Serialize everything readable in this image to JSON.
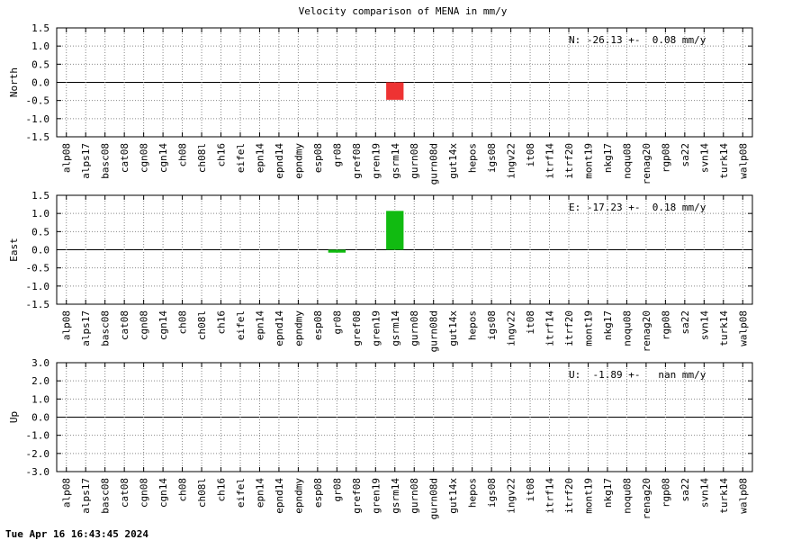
{
  "figure": {
    "title": "Velocity comparison of MENA in mm/y",
    "footer": "Tue Apr 16 16:43:45 2024"
  },
  "chart_data": [
    {
      "type": "bar",
      "ylabel": "North",
      "annotation": "N: -26.13 +-  0.08 mm/y",
      "ylim": [
        -1.5,
        1.5
      ],
      "yticks": [
        "1.5",
        "1.0",
        "0.5",
        "0.0",
        "-0.5",
        "-1.0",
        "-1.5"
      ],
      "color": "#ee3333",
      "grid": true,
      "categories": [
        "alp08",
        "alps17",
        "basc08",
        "cat08",
        "cgn08",
        "cgn14",
        "ch08",
        "ch08l",
        "ch16",
        "eifel",
        "epn14",
        "epnd14",
        "epndmy",
        "esp08",
        "gr08",
        "gref08",
        "gren19",
        "gsrm14",
        "gurn08",
        "gurn08d",
        "gut14x",
        "hepos",
        "igs08",
        "ingv22",
        "it08",
        "itrf14",
        "itrf20",
        "mont19",
        "nkg17",
        "noqu08",
        "renag20",
        "rgp08",
        "sa22",
        "svn14",
        "turk14",
        "walp08"
      ],
      "values": [
        0,
        0,
        0,
        0,
        0,
        0,
        0,
        0,
        0,
        0,
        0,
        0,
        0,
        0,
        0,
        0,
        0,
        -0.48,
        0,
        0,
        0,
        0,
        0,
        0,
        0,
        0,
        0,
        0,
        0,
        0,
        0,
        0,
        0,
        0,
        0,
        0
      ]
    },
    {
      "type": "bar",
      "ylabel": "East",
      "annotation": "E: -17.23 +-  0.18 mm/y",
      "ylim": [
        -1.5,
        1.5
      ],
      "yticks": [
        "1.5",
        "1.0",
        "0.5",
        "0.0",
        "-0.5",
        "-1.0",
        "-1.5"
      ],
      "color": "#11bb11",
      "grid": true,
      "categories": [
        "alp08",
        "alps17",
        "basc08",
        "cat08",
        "cgn08",
        "cgn14",
        "ch08",
        "ch08l",
        "ch16",
        "eifel",
        "epn14",
        "epnd14",
        "epndmy",
        "esp08",
        "gr08",
        "gref08",
        "gren19",
        "gsrm14",
        "gurn08",
        "gurn08d",
        "gut14x",
        "hepos",
        "igs08",
        "ingv22",
        "it08",
        "itrf14",
        "itrf20",
        "mont19",
        "nkg17",
        "noqu08",
        "renag20",
        "rgp08",
        "sa22",
        "svn14",
        "turk14",
        "walp08"
      ],
      "values": [
        0,
        0,
        0,
        0,
        0,
        0,
        0,
        0,
        0,
        0,
        0,
        0,
        0,
        0,
        -0.08,
        0,
        0,
        1.07,
        0,
        0,
        0,
        0,
        0,
        0,
        0,
        0,
        0,
        0,
        0,
        0,
        0,
        0,
        0,
        0,
        0,
        0
      ]
    },
    {
      "type": "bar",
      "ylabel": "Up",
      "annotation": "U:  -1.89 +-   nan mm/y",
      "ylim": [
        -3.0,
        3.0
      ],
      "yticks": [
        "3.0",
        "2.0",
        "1.0",
        "0.0",
        "-1.0",
        "-2.0",
        "-3.0"
      ],
      "color": "#3333ee",
      "grid": true,
      "categories": [
        "alp08",
        "alps17",
        "basc08",
        "cat08",
        "cgn08",
        "cgn14",
        "ch08",
        "ch08l",
        "ch16",
        "eifel",
        "epn14",
        "epnd14",
        "epndmy",
        "esp08",
        "gr08",
        "gref08",
        "gren19",
        "gsrm14",
        "gurn08",
        "gurn08d",
        "gut14x",
        "hepos",
        "igs08",
        "ingv22",
        "it08",
        "itrf14",
        "itrf20",
        "mont19",
        "nkg17",
        "noqu08",
        "renag20",
        "rgp08",
        "sa22",
        "svn14",
        "turk14",
        "walp08"
      ],
      "values": [
        0,
        0,
        0,
        0,
        0,
        0,
        0,
        0,
        0,
        0,
        0,
        0,
        0,
        0,
        0,
        0,
        0,
        0,
        0,
        0,
        0,
        0,
        0,
        0,
        0,
        0,
        0,
        0,
        0,
        0,
        0,
        0,
        0,
        0,
        0,
        0
      ]
    }
  ]
}
